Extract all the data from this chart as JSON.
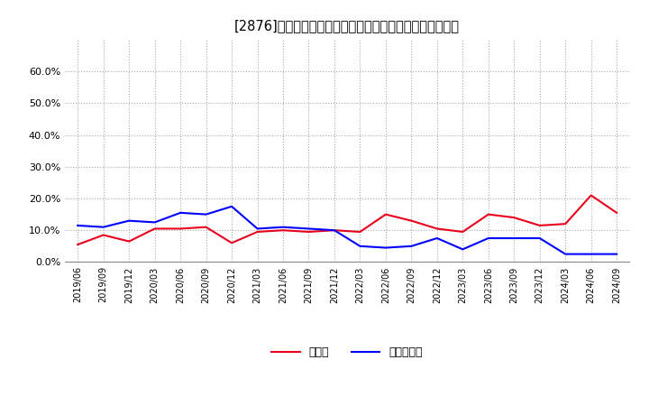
{
  "title": "[2876]　現須金、有利子負債の総資産に対する比率の推移",
  "x_labels": [
    "2019/06",
    "2019/09",
    "2019/12",
    "2020/03",
    "2020/06",
    "2020/09",
    "2020/12",
    "2021/03",
    "2021/06",
    "2021/09",
    "2021/12",
    "2022/03",
    "2022/06",
    "2022/09",
    "2022/12",
    "2023/03",
    "2023/06",
    "2023/09",
    "2023/12",
    "2024/03",
    "2024/06",
    "2024/09"
  ],
  "cash_ratio": [
    0.055,
    0.085,
    0.065,
    0.105,
    0.105,
    0.11,
    0.06,
    0.095,
    0.1,
    0.095,
    0.1,
    0.095,
    0.15,
    0.13,
    0.105,
    0.095,
    0.15,
    0.14,
    0.115,
    0.12,
    0.21,
    0.155
  ],
  "debt_ratio": [
    0.115,
    0.11,
    0.13,
    0.125,
    0.155,
    0.15,
    0.175,
    0.105,
    0.11,
    0.105,
    0.1,
    0.05,
    0.045,
    0.05,
    0.075,
    0.04,
    0.075,
    0.075,
    0.075,
    0.025,
    0.025,
    0.025
  ],
  "cash_color": "#e8001c",
  "debt_color": "#0000ff",
  "bg_color": "#ffffff",
  "plot_bg_color": "#ffffff",
  "grid_color": "#aaaaaa",
  "ylim": [
    0.0,
    0.7
  ],
  "yticks": [
    0.0,
    0.1,
    0.2,
    0.3,
    0.4,
    0.5,
    0.6
  ],
  "legend_cash": "現須金",
  "legend_debt": "有利子負債"
}
